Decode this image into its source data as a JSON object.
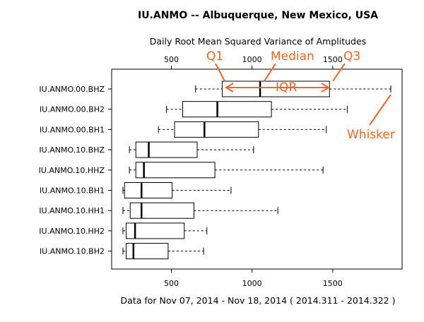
{
  "chart_data": {
    "type": "boxplot",
    "orientation": "horizontal",
    "title": "IU.ANMO -- Albuquerque, New Mexico, USA",
    "subtitle": "Daily Root Mean Squared Variance of Amplitudes",
    "xlabel": "Data for Nov 07, 2014 - Nov 18, 2014 ( 2014.311 - 2014.322 )",
    "xlim": [
      130,
      1930
    ],
    "xticks": [
      "500",
      "1000",
      "1500"
    ],
    "xtick_values": [
      500,
      1000,
      1500
    ],
    "grid": false,
    "series": [
      {
        "name": "IU.ANMO.00.BHZ",
        "min": 650,
        "q1": 815,
        "median": 1050,
        "q3": 1480,
        "max": 1860
      },
      {
        "name": "IU.ANMO.00.BH2",
        "min": 470,
        "q1": 570,
        "median": 785,
        "q3": 1120,
        "max": 1590
      },
      {
        "name": "IU.ANMO.00.BH1",
        "min": 420,
        "q1": 520,
        "median": 705,
        "q3": 1040,
        "max": 1460
      },
      {
        "name": "IU.ANMO.10.BHZ",
        "min": 240,
        "q1": 280,
        "median": 360,
        "q3": 660,
        "max": 1010
      },
      {
        "name": "IU.ANMO.10.HHZ",
        "min": 240,
        "q1": 280,
        "median": 330,
        "q3": 770,
        "max": 1440
      },
      {
        "name": "IU.ANMO.10.BH1",
        "min": 200,
        "q1": 210,
        "median": 315,
        "q3": 505,
        "max": 870
      },
      {
        "name": "IU.ANMO.10.HH1",
        "min": 200,
        "q1": 245,
        "median": 315,
        "q3": 640,
        "max": 1160
      },
      {
        "name": "IU.ANMO.10.HH2",
        "min": 200,
        "q1": 220,
        "median": 275,
        "q3": 580,
        "max": 720
      },
      {
        "name": "IU.ANMO.10.BH2",
        "min": 200,
        "q1": 220,
        "median": 265,
        "q3": 480,
        "max": 700
      }
    ],
    "annotations": {
      "q1": "Q1",
      "median": "Median",
      "q3": "Q3",
      "iqr": "IQR",
      "whisker": "Whisker",
      "color": "#f26522"
    }
  }
}
